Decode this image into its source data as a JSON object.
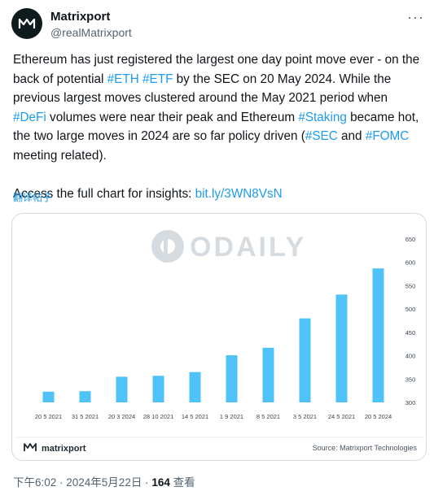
{
  "author": {
    "name": "Matrixport",
    "handle": "@realMatrixport"
  },
  "tweet": {
    "p1": [
      {
        "t": "Ethereum has just registered the largest one day point move ever - on the back of potential "
      },
      {
        "t": "#ETH",
        "tag": true
      },
      {
        "t": " "
      },
      {
        "t": "#ETF",
        "tag": true
      },
      {
        "t": " by the SEC on 20 May 2024. While the previous largest moves clustered around the May 2021 period when "
      },
      {
        "t": "#DeFi",
        "tag": true
      },
      {
        "t": " volumes were near their peak and Ethereum "
      },
      {
        "t": "#Staking",
        "tag": true
      },
      {
        "t": " became hot, the two large moves in 2024 are so far policy driven ("
      },
      {
        "t": "#SEC",
        "tag": true
      },
      {
        "t": " and "
      },
      {
        "t": "#FOMC",
        "tag": true
      },
      {
        "t": " meeting related)."
      }
    ],
    "p2_prefix": "Access the full chart for insights: ",
    "p2_link": "bit.ly/3WN8VsN"
  },
  "translate_label": "翻译帖子",
  "watermark": "ODAILY",
  "chart_data": {
    "type": "bar",
    "categories": [
      "20 5 2021",
      "31 5 2021",
      "20 3 2024",
      "28 10 2021",
      "14 5 2021",
      "1 9 2021",
      "8 5 2021",
      "3 5 2021",
      "24 5 2021",
      "20 5 2024"
    ],
    "values": [
      323,
      324,
      355,
      357,
      365,
      401,
      417,
      480,
      531,
      587
    ],
    "ylim": [
      300,
      650
    ],
    "yticks": [
      300,
      350,
      400,
      450,
      500,
      550,
      600,
      650
    ],
    "color": "#4fc3f7",
    "y_axis_side": "right",
    "grid": false
  },
  "card_footer": {
    "brand": "matrixport",
    "source": "Source: Matrixport Technologies"
  },
  "meta": {
    "time": "下午6:02 · 2024年5月22日 · ",
    "views": "164",
    "views_label": " 查看"
  },
  "colors": {
    "link": "#1d9bf0",
    "text": "#0f1419",
    "muted": "#536471",
    "bar": "#4fc3f7"
  }
}
